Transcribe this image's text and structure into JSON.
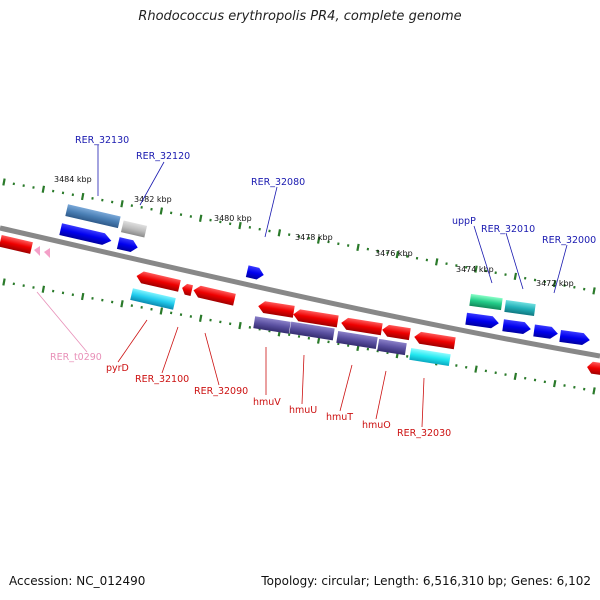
{
  "title": "Rhodococcus erythropolis PR4, complete genome",
  "footer": {
    "accession": "Accession: NC_012490",
    "topology": "Topology: circular; Length: 6,516,310 bp; Genes: 6,102"
  },
  "colors": {
    "forward_label": "#1a1ab0",
    "reverse_label": "#cc1111",
    "rna_label": "#e890b8",
    "backbone": "#888888",
    "tick": "#2a7a2a"
  },
  "scale_labels": [
    {
      "id": "3484",
      "text": "3484 kbp"
    },
    {
      "id": "3482",
      "text": "3482 kbp"
    },
    {
      "id": "3480",
      "text": "3480 kbp"
    },
    {
      "id": "3478",
      "text": "3478 kbp"
    },
    {
      "id": "3476",
      "text": "3476 kbp"
    },
    {
      "id": "3474",
      "text": "3474 kbp"
    },
    {
      "id": "3472",
      "text": "3472 kbp"
    }
  ],
  "gene_labels": {
    "rer_32130": "RER_32130",
    "rer_32120": "RER_32120",
    "rer_32080": "RER_32080",
    "uppp": "uppP",
    "rer_32010": "RER_32010",
    "rer_32000": "RER_32000",
    "rer_t0290": "RER_t0290",
    "pyrd": "pyrD",
    "rer_32100": "RER_32100",
    "rer_32090": "RER_32090",
    "hmuv": "hmuV",
    "hmuu": "hmuU",
    "hmut": "hmuT",
    "hmuo": "hmuO",
    "rer_32030": "RER_32030"
  }
}
